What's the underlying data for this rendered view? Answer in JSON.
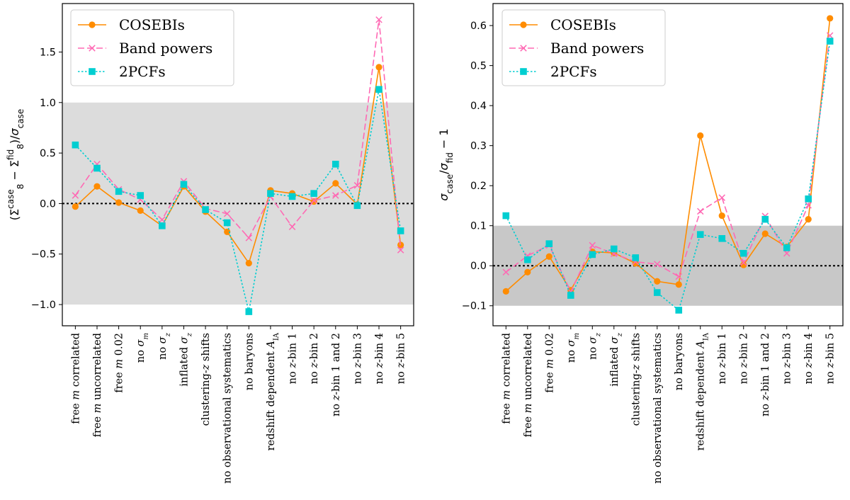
{
  "chart_data": [
    {
      "type": "line",
      "categories": [
        [
          {
            "t": "free "
          },
          {
            "t": "m",
            "i": true
          },
          {
            "t": " correlated"
          }
        ],
        [
          {
            "t": "free "
          },
          {
            "t": "m",
            "i": true
          },
          {
            "t": " uncorrelated"
          }
        ],
        [
          {
            "t": "free "
          },
          {
            "t": "m",
            "i": true
          },
          {
            "t": " 0.02"
          }
        ],
        [
          {
            "t": "no "
          },
          {
            "t": "σ",
            "i": true
          },
          {
            "t": "m",
            "i": true,
            "sub": true
          }
        ],
        [
          {
            "t": "no "
          },
          {
            "t": "σ",
            "i": true
          },
          {
            "t": "z",
            "i": true,
            "sub": true
          }
        ],
        [
          {
            "t": "inflated "
          },
          {
            "t": "σ",
            "i": true
          },
          {
            "t": "z",
            "i": true,
            "sub": true
          }
        ],
        [
          {
            "t": "clustering-"
          },
          {
            "t": "z",
            "i": true
          },
          {
            "t": " shifts"
          }
        ],
        [
          {
            "t": "no observational systematics"
          }
        ],
        [
          {
            "t": "no baryons"
          }
        ],
        [
          {
            "t": "redshift dependent "
          },
          {
            "t": "A",
            "i": true
          },
          {
            "t": "IA",
            "sub": true
          }
        ],
        [
          {
            "t": "no "
          },
          {
            "t": "z",
            "i": true
          },
          {
            "t": "-bin 1"
          }
        ],
        [
          {
            "t": "no "
          },
          {
            "t": "z",
            "i": true
          },
          {
            "t": "-bin 2"
          }
        ],
        [
          {
            "t": "no "
          },
          {
            "t": "z",
            "i": true
          },
          {
            "t": "-bin 1 and 2"
          }
        ],
        [
          {
            "t": "no "
          },
          {
            "t": "z",
            "i": true
          },
          {
            "t": "-bin 3"
          }
        ],
        [
          {
            "t": "no "
          },
          {
            "t": "z",
            "i": true
          },
          {
            "t": "-bin 4"
          }
        ],
        [
          {
            "t": "no "
          },
          {
            "t": "z",
            "i": true
          },
          {
            "t": "-bin 5"
          }
        ]
      ],
      "ylabel": [
        {
          "t": "(Σ"
        },
        {
          "t": "case",
          "sup": true
        },
        {
          "t": "8",
          "sub": true
        },
        {
          "t": " − Σ"
        },
        {
          "t": "fid",
          "sup": true
        },
        {
          "t": "8",
          "sub": true
        },
        {
          "t": ")/"
        },
        {
          "t": "σ",
          "i": true
        },
        {
          "t": "case",
          "sub": true
        }
      ],
      "ylim": [
        -1.21,
        1.98
      ],
      "yticks": [
        -1.0,
        -0.5,
        0.0,
        0.5,
        1.0,
        1.5
      ],
      "ytick_labels": [
        "−1.0",
        "−0.5",
        "0.0",
        "0.5",
        "1.0",
        "1.5"
      ],
      "shaded_band": [
        -1.0,
        1.0
      ],
      "reference_line": 0.0,
      "legend_position": "top-left",
      "series": [
        {
          "name": "COSEBIs",
          "color": "#ff8c00",
          "marker": "circle",
          "dash": "solid",
          "values": [
            -0.03,
            0.17,
            0.01,
            -0.07,
            -0.22,
            0.17,
            -0.08,
            -0.28,
            -0.59,
            0.13,
            0.1,
            0.02,
            0.2,
            -0.01,
            1.35,
            -0.41
          ]
        },
        {
          "name": "Band powers",
          "color": "#ff69b4",
          "marker": "x",
          "dash": "dashed",
          "values": [
            0.08,
            0.39,
            0.14,
            0.04,
            -0.16,
            0.22,
            -0.05,
            -0.1,
            -0.34,
            0.07,
            -0.23,
            0.03,
            0.08,
            0.18,
            1.82,
            -0.46
          ]
        },
        {
          "name": "2PCFs",
          "color": "#00ced1",
          "marker": "square",
          "dash": "dotted",
          "values": [
            0.58,
            0.35,
            0.12,
            0.08,
            -0.22,
            0.19,
            -0.06,
            -0.19,
            -1.07,
            0.1,
            0.07,
            0.1,
            0.39,
            -0.02,
            1.13,
            -0.27
          ]
        }
      ]
    },
    {
      "type": "line",
      "categories": [
        [
          {
            "t": "free "
          },
          {
            "t": "m",
            "i": true
          },
          {
            "t": " correlated"
          }
        ],
        [
          {
            "t": "free "
          },
          {
            "t": "m",
            "i": true
          },
          {
            "t": " uncorrelated"
          }
        ],
        [
          {
            "t": "free "
          },
          {
            "t": "m",
            "i": true
          },
          {
            "t": " 0.02"
          }
        ],
        [
          {
            "t": "no "
          },
          {
            "t": "σ",
            "i": true
          },
          {
            "t": "m",
            "i": true,
            "sub": true
          }
        ],
        [
          {
            "t": "no "
          },
          {
            "t": "σ",
            "i": true
          },
          {
            "t": "z",
            "i": true,
            "sub": true
          }
        ],
        [
          {
            "t": "inflated "
          },
          {
            "t": "σ",
            "i": true
          },
          {
            "t": "z",
            "i": true,
            "sub": true
          }
        ],
        [
          {
            "t": "clustering-"
          },
          {
            "t": "z",
            "i": true
          },
          {
            "t": " shifts"
          }
        ],
        [
          {
            "t": "no observational systematics"
          }
        ],
        [
          {
            "t": "no baryons"
          }
        ],
        [
          {
            "t": "redshift dependent "
          },
          {
            "t": "A",
            "i": true
          },
          {
            "t": "IA",
            "sub": true
          }
        ],
        [
          {
            "t": "no "
          },
          {
            "t": "z",
            "i": true
          },
          {
            "t": "-bin 1"
          }
        ],
        [
          {
            "t": "no "
          },
          {
            "t": "z",
            "i": true
          },
          {
            "t": "-bin 2"
          }
        ],
        [
          {
            "t": "no "
          },
          {
            "t": "z",
            "i": true
          },
          {
            "t": "-bin 1 and 2"
          }
        ],
        [
          {
            "t": "no "
          },
          {
            "t": "z",
            "i": true
          },
          {
            "t": "-bin 3"
          }
        ],
        [
          {
            "t": "no "
          },
          {
            "t": "z",
            "i": true
          },
          {
            "t": "-bin 4"
          }
        ],
        [
          {
            "t": "no "
          },
          {
            "t": "z",
            "i": true
          },
          {
            "t": "-bin 5"
          }
        ]
      ],
      "ylabel": [
        {
          "t": "σ",
          "i": true
        },
        {
          "t": "case",
          "sub": true
        },
        {
          "t": "/"
        },
        {
          "t": "σ",
          "i": true
        },
        {
          "t": "fid",
          "sub": true
        },
        {
          "t": " − 1"
        }
      ],
      "ylim": [
        -0.15,
        0.655
      ],
      "yticks": [
        -0.1,
        0.0,
        0.1,
        0.2,
        0.3,
        0.4,
        0.5,
        0.6
      ],
      "ytick_labels": [
        "−0.1",
        "0.0",
        "0.1",
        "0.2",
        "0.3",
        "0.4",
        "0.5",
        "0.6"
      ],
      "shaded_band": [
        -0.1,
        0.1
      ],
      "reference_line": 0.0,
      "legend_position": "top-left",
      "series": [
        {
          "name": "COSEBIs",
          "color": "#ff8c00",
          "marker": "circle",
          "dash": "solid",
          "values": [
            -0.064,
            -0.016,
            0.023,
            -0.061,
            0.035,
            0.032,
            0.006,
            -0.039,
            -0.047,
            0.325,
            0.125,
            0.002,
            0.08,
            0.047,
            0.116,
            0.618
          ]
        },
        {
          "name": "Band powers",
          "color": "#ff69b4",
          "marker": "x",
          "dash": "dashed",
          "values": [
            -0.016,
            0.025,
            0.051,
            -0.065,
            0.051,
            0.03,
            0.01,
            0.004,
            -0.027,
            0.136,
            0.17,
            0.008,
            0.124,
            0.031,
            0.151,
            0.575
          ]
        },
        {
          "name": "2PCFs",
          "color": "#00ced1",
          "marker": "square",
          "dash": "dotted",
          "values": [
            0.125,
            0.015,
            0.055,
            -0.074,
            0.028,
            0.042,
            0.02,
            -0.067,
            -0.111,
            0.078,
            0.068,
            0.031,
            0.116,
            0.045,
            0.167,
            0.561
          ]
        }
      ]
    }
  ]
}
